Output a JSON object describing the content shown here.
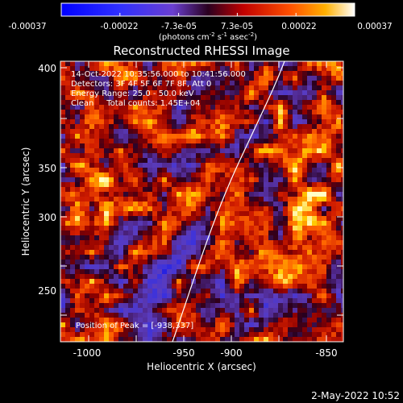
{
  "colorbar": {
    "ticks": [
      "-0.00037",
      "-0.00022",
      "-7.3e-05",
      "7.3e-05",
      "0.00022",
      "0.00037"
    ],
    "unit_label_main": "(photons cm",
    "unit_exp1": "-2",
    "unit_mid1": " s",
    "unit_exp2": "-1",
    "unit_mid2": " asec",
    "unit_exp3": "-2",
    "unit_close": ")"
  },
  "plot": {
    "title": "Reconstructed RHESSI Image",
    "xlabel": "Heliocentric X (arcsec)",
    "ylabel": "Heliocentric Y (arcsec)",
    "x_ticks": [
      "-1000",
      "-950",
      "-900",
      "-850"
    ],
    "y_ticks": [
      "400",
      "350",
      "300",
      "250"
    ]
  },
  "annotations": {
    "time_range": "14-Oct-2022 10:35:56.000 to 10:41:56.000",
    "detectors": "Detectors: 3F 4F 5F 6F 7F 8F, Att 0",
    "energy_range": "Energy Range: 25.0 - 50.0 keV",
    "method": "Clean     Total counts: 1.45E+04",
    "peak_position": "Position of Peak = [-938,337]"
  },
  "footer": {
    "date_stamp": "2-May-2022 10:52"
  },
  "colors": {
    "background": "#000000",
    "limb_line": "#ffffff"
  }
}
